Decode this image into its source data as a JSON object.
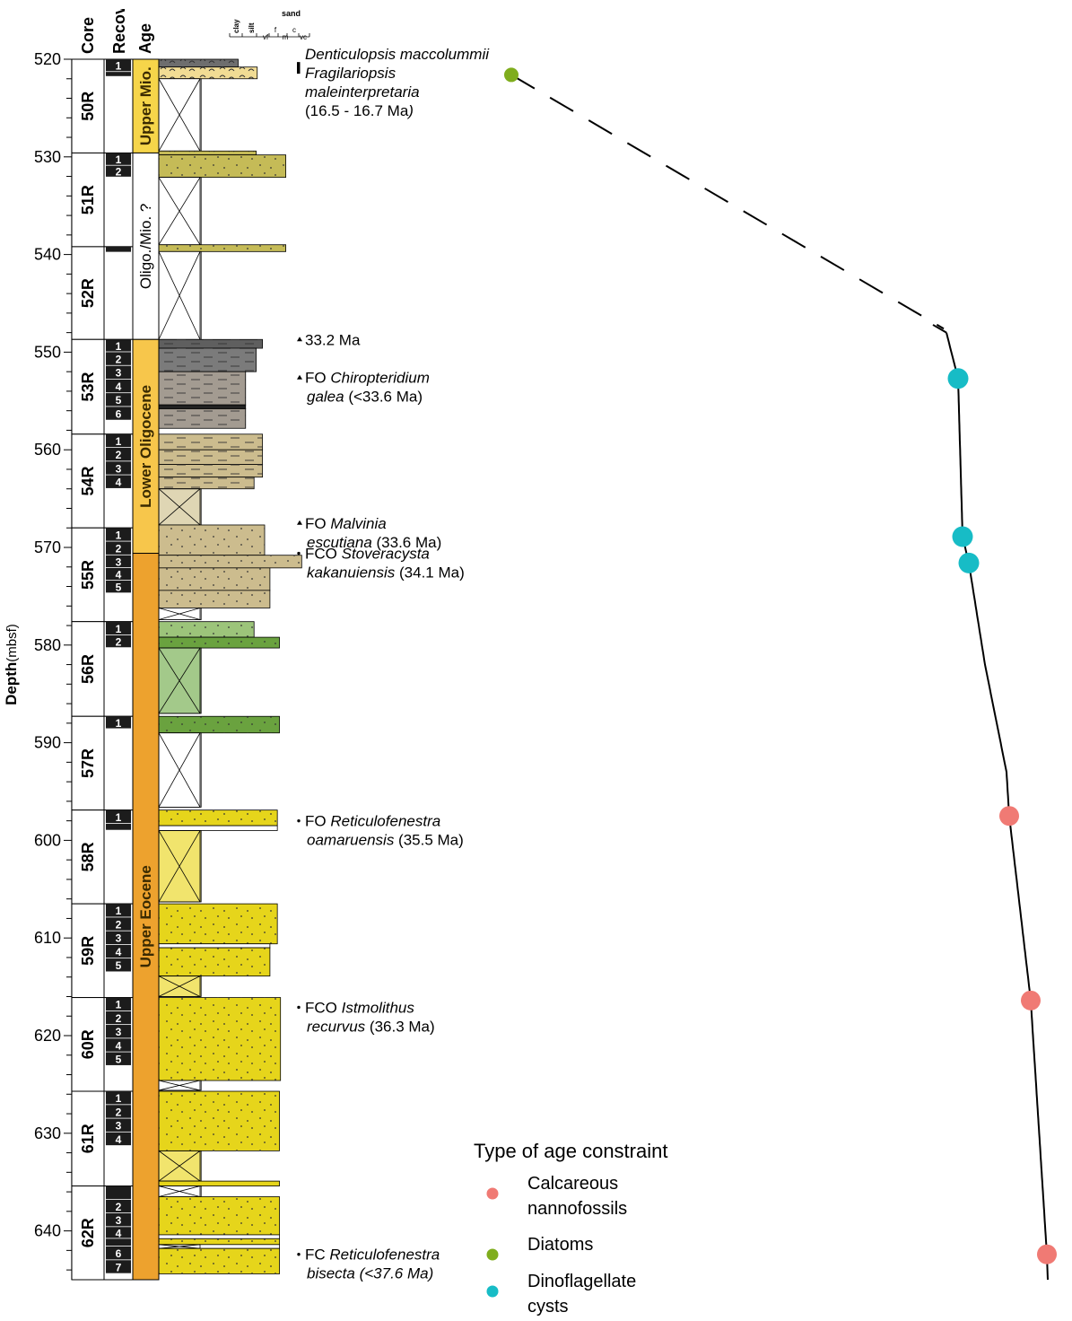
{
  "headers": {
    "core": "Core",
    "recovery": "Recovery",
    "age": "Age",
    "depth": "Depth",
    "depth_unit": "(mbsf)"
  },
  "grain_scale": {
    "clay": "clay",
    "silt": "silt",
    "sand": "sand",
    "sand_classes": [
      "vf",
      "f",
      "m",
      "c",
      "vc"
    ]
  },
  "depth_axis": {
    "min": 520,
    "max": 645,
    "labeled_ticks": [
      520,
      530,
      540,
      550,
      560,
      570,
      580,
      590,
      600,
      610,
      620,
      630,
      640
    ]
  },
  "cores": [
    {
      "name": "50R",
      "top": 520.0,
      "bottom": 529.6
    },
    {
      "name": "51R",
      "top": 529.6,
      "bottom": 539.2
    },
    {
      "name": "52R",
      "top": 539.2,
      "bottom": 548.7
    },
    {
      "name": "53R",
      "top": 548.7,
      "bottom": 558.4
    },
    {
      "name": "54R",
      "top": 558.4,
      "bottom": 568.0
    },
    {
      "name": "55R",
      "top": 568.0,
      "bottom": 577.6
    },
    {
      "name": "56R",
      "top": 577.6,
      "bottom": 587.3
    },
    {
      "name": "57R",
      "top": 587.3,
      "bottom": 596.9
    },
    {
      "name": "58R",
      "top": 596.9,
      "bottom": 606.5
    },
    {
      "name": "59R",
      "top": 606.5,
      "bottom": 616.1
    },
    {
      "name": "60R",
      "top": 616.1,
      "bottom": 625.7
    },
    {
      "name": "61R",
      "top": 625.7,
      "bottom": 635.4
    },
    {
      "name": "62R",
      "top": 635.4,
      "bottom": 645.0
    }
  ],
  "sections": [
    {
      "label": "1",
      "top": 520.0,
      "bottom": 521.3
    },
    {
      "label": "",
      "top": 521.3,
      "bottom": 521.8
    },
    {
      "label": "1",
      "top": 529.6,
      "bottom": 530.9
    },
    {
      "label": "2",
      "top": 530.9,
      "bottom": 532.1
    },
    {
      "label": "",
      "top": 539.2,
      "bottom": 539.8
    },
    {
      "label": "1",
      "top": 548.7,
      "bottom": 550.0
    },
    {
      "label": "2",
      "top": 550.0,
      "bottom": 551.4
    },
    {
      "label": "3",
      "top": 551.4,
      "bottom": 552.8
    },
    {
      "label": "4",
      "top": 552.8,
      "bottom": 554.2
    },
    {
      "label": "5",
      "top": 554.2,
      "bottom": 555.6
    },
    {
      "label": "6",
      "top": 555.6,
      "bottom": 557.0
    },
    {
      "label": "1",
      "top": 558.4,
      "bottom": 559.8
    },
    {
      "label": "2",
      "top": 559.8,
      "bottom": 561.2
    },
    {
      "label": "3",
      "top": 561.2,
      "bottom": 562.6
    },
    {
      "label": "4",
      "top": 562.6,
      "bottom": 564.0
    },
    {
      "label": "1",
      "top": 568.0,
      "bottom": 569.4
    },
    {
      "label": "2",
      "top": 569.4,
      "bottom": 570.8
    },
    {
      "label": "3",
      "top": 570.8,
      "bottom": 572.1
    },
    {
      "label": "4",
      "top": 572.1,
      "bottom": 573.4
    },
    {
      "label": "5",
      "top": 573.4,
      "bottom": 574.7
    },
    {
      "label": "1",
      "top": 577.6,
      "bottom": 579.0
    },
    {
      "label": "2",
      "top": 579.0,
      "bottom": 580.3
    },
    {
      "label": "1",
      "top": 587.3,
      "bottom": 588.6
    },
    {
      "label": "1",
      "top": 596.9,
      "bottom": 598.3
    },
    {
      "label": "",
      "top": 598.3,
      "bottom": 599.0
    },
    {
      "label": "1",
      "top": 606.5,
      "bottom": 607.9
    },
    {
      "label": "2",
      "top": 607.9,
      "bottom": 609.3
    },
    {
      "label": "3",
      "top": 609.3,
      "bottom": 610.7
    },
    {
      "label": "4",
      "top": 610.7,
      "bottom": 612.1
    },
    {
      "label": "5",
      "top": 612.1,
      "bottom": 613.5
    },
    {
      "label": "1",
      "top": 616.1,
      "bottom": 617.5
    },
    {
      "label": "2",
      "top": 617.5,
      "bottom": 618.9
    },
    {
      "label": "3",
      "top": 618.9,
      "bottom": 620.3
    },
    {
      "label": "4",
      "top": 620.3,
      "bottom": 621.7
    },
    {
      "label": "5",
      "top": 621.7,
      "bottom": 623.1
    },
    {
      "label": "1",
      "top": 625.7,
      "bottom": 627.1
    },
    {
      "label": "2",
      "top": 627.1,
      "bottom": 628.5
    },
    {
      "label": "3",
      "top": 628.5,
      "bottom": 629.9
    },
    {
      "label": "4",
      "top": 629.9,
      "bottom": 631.3
    },
    {
      "label": "",
      "top": 635.4,
      "bottom": 636.8
    },
    {
      "label": "2",
      "top": 636.8,
      "bottom": 638.2
    },
    {
      "label": "3",
      "top": 638.2,
      "bottom": 639.6
    },
    {
      "label": "4",
      "top": 639.6,
      "bottom": 640.8
    },
    {
      "label": "",
      "top": 640.8,
      "bottom": 641.6
    },
    {
      "label": "6",
      "top": 641.6,
      "bottom": 643.0
    },
    {
      "label": "7",
      "top": 643.0,
      "bottom": 644.4
    }
  ],
  "age_units": [
    {
      "label": "Upper Mio.",
      "top": 520.0,
      "bottom": 529.6,
      "color": "#f6d54a",
      "text_color": "#3a2a00",
      "bold": true
    },
    {
      "label": "Oligo./Mio. ?",
      "top": 529.6,
      "bottom": 548.7,
      "color": "#ffffff",
      "text_color": "#000000",
      "bold": false
    },
    {
      "label": "Lower Oligocene",
      "top": 548.7,
      "bottom": 570.6,
      "color": "#f7c64b",
      "text_color": "#3a2a00",
      "bold": true
    },
    {
      "label": "Upper Eocene",
      "top": 570.6,
      "bottom": 645.0,
      "color": "#eda22e",
      "text_color": "#3a2a00",
      "bold": true
    }
  ],
  "lithology": [
    {
      "top": 520.0,
      "bottom": 520.8,
      "grain": 0.75,
      "fill": "#6e6e6e",
      "pattern": "wavy"
    },
    {
      "top": 520.8,
      "bottom": 522.0,
      "grain": 0.93,
      "fill": "#f1dc94",
      "pattern": "wavy"
    },
    {
      "top": 522.0,
      "bottom": 529.4,
      "grain": 0.4,
      "fill": "#ffffff",
      "pattern": "void"
    },
    {
      "top": 529.4,
      "bottom": 529.8,
      "grain": 0.92,
      "fill": "#c5bb57",
      "pattern": "wavy"
    },
    {
      "top": 529.8,
      "bottom": 532.1,
      "grain": 1.2,
      "fill": "#c5bb57",
      "pattern": "dots"
    },
    {
      "top": 532.1,
      "bottom": 539.0,
      "grain": 0.4,
      "fill": "#ffffff",
      "pattern": "void"
    },
    {
      "top": 539.0,
      "bottom": 539.7,
      "grain": 1.2,
      "fill": "#c5bb57",
      "pattern": "dots"
    },
    {
      "top": 539.7,
      "bottom": 548.7,
      "grain": 0.4,
      "fill": "#ffffff",
      "pattern": "void"
    },
    {
      "top": 548.7,
      "bottom": 549.6,
      "grain": 0.98,
      "fill": "#5f5f5f",
      "pattern": "dashes"
    },
    {
      "top": 549.6,
      "bottom": 552.0,
      "grain": 0.92,
      "fill": "#7b7b7b",
      "pattern": "dashes"
    },
    {
      "top": 552.0,
      "bottom": 555.4,
      "grain": 0.82,
      "fill": "#a39b91",
      "pattern": "dashes"
    },
    {
      "top": 555.4,
      "bottom": 555.8,
      "grain": 0.82,
      "fill": "#222222",
      "pattern": "none"
    },
    {
      "top": 555.8,
      "bottom": 557.8,
      "grain": 0.82,
      "fill": "#a39b91",
      "pattern": "dashes"
    },
    {
      "top": 558.4,
      "bottom": 560.0,
      "grain": 0.98,
      "fill": "#ccbc8e",
      "pattern": "dashes"
    },
    {
      "top": 560.0,
      "bottom": 561.5,
      "grain": 0.98,
      "fill": "#ccbc8e",
      "pattern": "dashes"
    },
    {
      "top": 561.5,
      "bottom": 562.8,
      "grain": 0.98,
      "fill": "#ccbc8e",
      "pattern": "dashes"
    },
    {
      "top": 562.8,
      "bottom": 564.0,
      "grain": 0.9,
      "fill": "#ccbc8e",
      "pattern": "dashes"
    },
    {
      "top": 564.0,
      "bottom": 567.7,
      "grain": 0.4,
      "fill": "#dfd6b4",
      "pattern": "void"
    },
    {
      "top": 567.7,
      "bottom": 570.8,
      "grain": 1.0,
      "fill": "#ccbc8e",
      "pattern": "dots"
    },
    {
      "top": 570.8,
      "bottom": 572.1,
      "grain": 1.35,
      "fill": "#ccbc8e",
      "pattern": "dots"
    },
    {
      "top": 572.1,
      "bottom": 574.4,
      "grain": 1.05,
      "fill": "#ccbc8e",
      "pattern": "dots"
    },
    {
      "top": 574.4,
      "bottom": 576.2,
      "grain": 1.05,
      "fill": "#ccbc8e",
      "pattern": "dots"
    },
    {
      "top": 576.2,
      "bottom": 577.4,
      "grain": 0.4,
      "fill": "#ffffff",
      "pattern": "void"
    },
    {
      "top": 577.6,
      "bottom": 579.2,
      "grain": 0.9,
      "fill": "#9cc47a",
      "pattern": "dots"
    },
    {
      "top": 579.2,
      "bottom": 580.3,
      "grain": 1.14,
      "fill": "#6aa23f",
      "pattern": "dots"
    },
    {
      "top": 580.3,
      "bottom": 587.0,
      "grain": 0.4,
      "fill": "#a3c98a",
      "pattern": "void"
    },
    {
      "top": 587.3,
      "bottom": 589.0,
      "grain": 1.14,
      "fill": "#6aa23f",
      "pattern": "dots"
    },
    {
      "top": 589.0,
      "bottom": 596.6,
      "grain": 0.4,
      "fill": "#ffffff",
      "pattern": "void"
    },
    {
      "top": 596.9,
      "bottom": 598.5,
      "grain": 1.12,
      "fill": "#e6d51b",
      "pattern": "dots"
    },
    {
      "top": 598.5,
      "bottom": 599.0,
      "grain": 1.12,
      "fill": "#ffffff",
      "pattern": "none"
    },
    {
      "top": 599.0,
      "bottom": 606.3,
      "grain": 0.4,
      "fill": "#f1e46d",
      "pattern": "void"
    },
    {
      "top": 606.5,
      "bottom": 610.6,
      "grain": 1.12,
      "fill": "#e6d51b",
      "pattern": "dots"
    },
    {
      "top": 610.6,
      "bottom": 611.0,
      "grain": 1.05,
      "fill": "#ffffff",
      "pattern": "none"
    },
    {
      "top": 611.0,
      "bottom": 613.9,
      "grain": 1.05,
      "fill": "#e6d51b",
      "pattern": "dots"
    },
    {
      "top": 613.9,
      "bottom": 616.0,
      "grain": 0.4,
      "fill": "#f1e46d",
      "pattern": "void"
    },
    {
      "top": 616.1,
      "bottom": 624.6,
      "grain": 1.15,
      "fill": "#e6d51b",
      "pattern": "dots"
    },
    {
      "top": 624.6,
      "bottom": 625.6,
      "grain": 0.4,
      "fill": "#ffffff",
      "pattern": "void"
    },
    {
      "top": 625.7,
      "bottom": 631.8,
      "grain": 1.14,
      "fill": "#e6d51b",
      "pattern": "dots"
    },
    {
      "top": 631.8,
      "bottom": 634.9,
      "grain": 0.4,
      "fill": "#f1e46d",
      "pattern": "void"
    },
    {
      "top": 634.9,
      "bottom": 635.4,
      "grain": 1.14,
      "fill": "#e6d51b",
      "pattern": "none"
    },
    {
      "top": 635.4,
      "bottom": 636.5,
      "grain": 0.4,
      "fill": "#ffffff",
      "pattern": "void"
    },
    {
      "top": 636.5,
      "bottom": 640.4,
      "grain": 1.14,
      "fill": "#e6d51b",
      "pattern": "dots"
    },
    {
      "top": 640.4,
      "bottom": 640.8,
      "grain": 1.14,
      "fill": "#ffffff",
      "pattern": "none"
    },
    {
      "top": 640.8,
      "bottom": 641.4,
      "grain": 1.14,
      "fill": "#e6d51b",
      "pattern": "dots"
    },
    {
      "top": 641.4,
      "bottom": 641.8,
      "grain": 1.14,
      "fill": "#ffffff",
      "pattern": "void"
    },
    {
      "top": 641.8,
      "bottom": 644.4,
      "grain": 1.14,
      "fill": "#e6d51b",
      "pattern": "dots"
    }
  ],
  "biostrat_events": [
    {
      "depth": 521.3,
      "marker": "bar",
      "lines": [
        [
          {
            "t": "Denticulopsis maccolummii",
            "i": true
          }
        ],
        [
          {
            "t": "Fragilariopsis",
            "i": true
          }
        ],
        [
          {
            "t": "maleinterpretaria",
            "i": true
          }
        ],
        [
          {
            "t": "(16.5 - 16.7 Ma",
            "i": false
          },
          {
            "t": ")",
            "i": true
          }
        ]
      ]
    },
    {
      "depth": 548.7,
      "marker": "tri",
      "lines": [
        [
          {
            "t": "33.2 Ma",
            "i": false
          }
        ]
      ]
    },
    {
      "depth": 552.6,
      "marker": "tri",
      "lines": [
        [
          {
            "t": "FO ",
            "i": false
          },
          {
            "t": "Chiropteridium",
            "i": true
          }
        ],
        [
          {
            "t": "galea",
            "i": true
          },
          {
            "t": " (<33.6 Ma)",
            "i": false
          }
        ]
      ]
    },
    {
      "depth": 567.5,
      "marker": "tri",
      "lines": [
        [
          {
            "t": "FO ",
            "i": false
          },
          {
            "t": "Malvinia",
            "i": true
          }
        ],
        [
          {
            "t": "escutiana",
            "i": true
          },
          {
            "t": " (33.6 Ma)",
            "i": false
          }
        ]
      ]
    },
    {
      "depth": 570.6,
      "marker": "dot",
      "lines": [
        [
          {
            "t": "FCO ",
            "i": false
          },
          {
            "t": "Stoveracysta",
            "i": true
          }
        ],
        [
          {
            "t": "kakanuiensis",
            "i": true
          },
          {
            "t": " (34.1 Ma)",
            "i": false
          }
        ]
      ]
    },
    {
      "depth": 598.0,
      "marker": "dot",
      "lines": [
        [
          {
            "t": "FO ",
            "i": false
          },
          {
            "t": "Reticulofenestra",
            "i": true
          }
        ],
        [
          {
            "t": "oamaruensis",
            "i": true
          },
          {
            "t": " (35.5 Ma)",
            "i": false
          }
        ]
      ]
    },
    {
      "depth": 617.1,
      "marker": "dot",
      "lines": [
        [
          {
            "t": "FCO ",
            "i": false
          },
          {
            "t": "Istmolithus",
            "i": true
          }
        ],
        [
          {
            "t": "recurvus",
            "i": true
          },
          {
            "t": " (36.3 Ma)",
            "i": false
          }
        ]
      ]
    },
    {
      "depth": 642.4,
      "marker": "dot",
      "lines": [
        [
          {
            "t": "FC ",
            "i": false
          },
          {
            "t": "Reticulofenestra",
            "i": true
          }
        ],
        [
          {
            "t": "bisecta (<37.6 Ma)",
            "i": true
          }
        ]
      ]
    }
  ],
  "age_points": [
    {
      "depth": 521.6,
      "type": "diatoms"
    },
    {
      "depth": 552.7,
      "type": "dinoflagellate"
    },
    {
      "depth": 568.9,
      "type": "dinoflagellate"
    },
    {
      "depth": 571.6,
      "type": "dinoflagellate"
    },
    {
      "depth": 597.5,
      "type": "nannofossils"
    },
    {
      "depth": 616.4,
      "type": "nannofossils"
    },
    {
      "depth": 642.4,
      "type": "nannofossils"
    }
  ],
  "age_legend": {
    "title": "Type of age constraint",
    "items": [
      {
        "type": "nannofossils",
        "lines": [
          "Calcareous",
          "nannofossils"
        ],
        "color": "#f07a74"
      },
      {
        "type": "diatoms",
        "lines": [
          "Diatoms"
        ],
        "color": "#7fad1d"
      },
      {
        "type": "dinoflagellate",
        "lines": [
          "Dinoflagellate",
          "cysts"
        ],
        "color": "#17bcc6"
      }
    ]
  }
}
